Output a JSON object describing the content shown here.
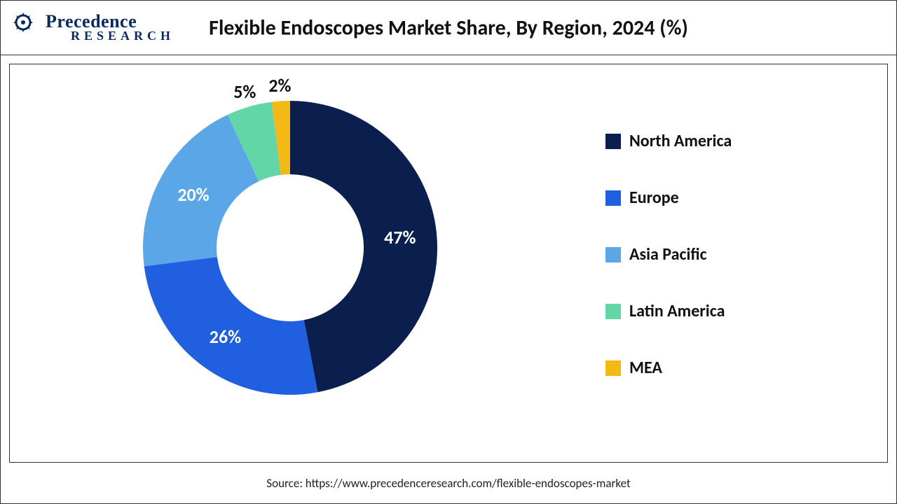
{
  "brand": {
    "name_top": "Precedence",
    "name_bottom": "RESEARCH",
    "color": "#0a2a5e"
  },
  "chart": {
    "type": "donut",
    "title": "Flexible Endoscopes Market Share, By Region, 2024 (%)",
    "title_fontsize": 30,
    "title_fontweight": 700,
    "background_color": "#ffffff",
    "frame_border_color": "#333333",
    "outer_radius": 210,
    "inner_radius": 105,
    "start_angle_deg": 0,
    "slices": [
      {
        "label": "North America",
        "value": 47,
        "color": "#0a1f4d",
        "text": "47%",
        "label_color": "#ffffff"
      },
      {
        "label": "Europe",
        "value": 26,
        "color": "#1f5fe0",
        "text": "26%",
        "label_color": "#ffffff"
      },
      {
        "label": "Asia Pacific",
        "value": 20,
        "color": "#5aa6e6",
        "text": "20%",
        "label_color": "#ffffff"
      },
      {
        "label": "Latin America",
        "value": 5,
        "color": "#63d6a7",
        "text": "5%",
        "label_color": "#111111"
      },
      {
        "label": "MEA",
        "value": 2,
        "color": "#f5b915",
        "text": "2%",
        "label_color": "#111111"
      }
    ],
    "label_fontsize": 26,
    "label_fontweight": 700,
    "legend": {
      "position": "right",
      "fontsize": 24,
      "fontweight": 700,
      "swatch_size": 22,
      "item_gap": 52
    }
  },
  "source": {
    "prefix": "Source: ",
    "text": "https://www.precedenceresearch.com/flexible-endoscopes-market",
    "fontsize": 17,
    "color": "#222222"
  }
}
